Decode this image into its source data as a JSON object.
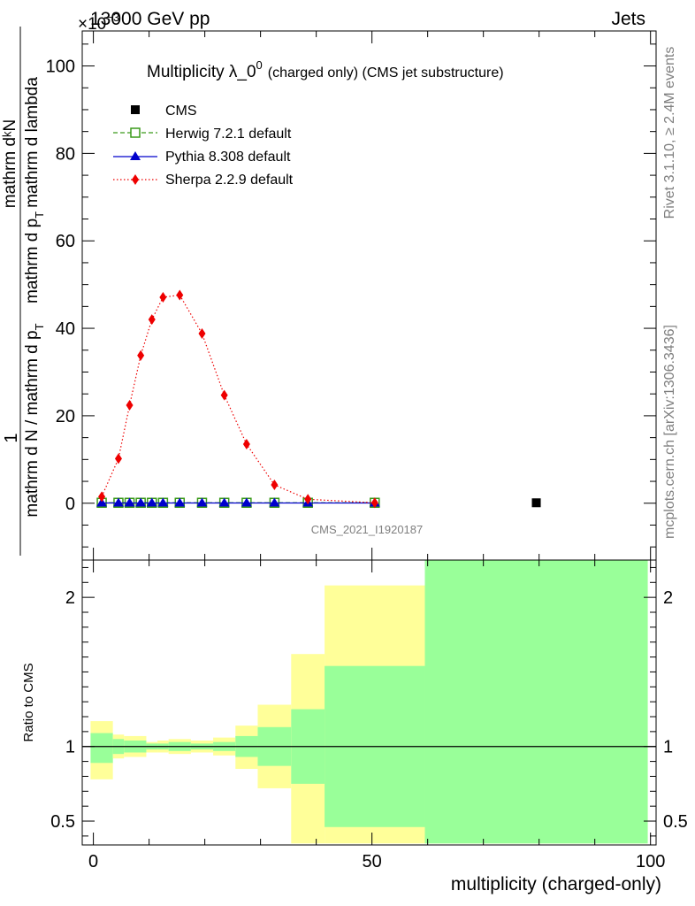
{
  "header": {
    "energy_label": "13000 GeV pp",
    "process_label": "Jets",
    "exponent_prefix": "×10",
    "exponent_value": "−3"
  },
  "side_labels": {
    "rivet": "Rivet 3.1.10, ≥ 2.4M events",
    "mcplots": "mcplots.cern.ch [arXiv:1306.3436]"
  },
  "chart_data": [
    {
      "type": "line",
      "title": "Multiplicity λ_0",
      "title_sup": "0",
      "title_suffix": "(charged only) (CMS jet substructure)",
      "ylabel_numerator": "1",
      "ylabel_numerator2": "mathrm dᵏN",
      "ylabel_denominator": "mathrm d N / mathrm d p",
      "ylabel_denominator_sub": "T",
      "ylabel_numerator_tail": "mathrm d p",
      "ylabel_numerator_tail_sub": "T",
      "ylabel_numerator_tail2": "mathrm d lambda",
      "xlim": [
        -2,
        101
      ],
      "ylim": [
        -13,
        108
      ],
      "yticks": [
        0,
        20,
        40,
        60,
        80,
        100
      ],
      "watermark": "CMS_2021_I1920187",
      "legend_position": "top-left",
      "series": [
        {
          "name": "CMS",
          "color": "#000000",
          "marker": "square",
          "line": "none",
          "x": [
            79.5
          ],
          "y": [
            0.1
          ]
        },
        {
          "name": "Herwig 7.2.1 default",
          "color": "#3a9a1a",
          "marker": "open-square",
          "line": "dashed",
          "x": [
            1.5,
            4.5,
            6.5,
            8.5,
            10.5,
            12.5,
            15.5,
            19.5,
            23.5,
            27.5,
            32.5,
            38.5,
            50.5
          ],
          "y": [
            0.1,
            0.1,
            0.1,
            0.1,
            0.1,
            0.1,
            0.1,
            0.1,
            0.1,
            0.1,
            0.1,
            0.1,
            0.1
          ]
        },
        {
          "name": "Pythia 8.308 default",
          "color": "#0000cc",
          "marker": "triangle",
          "line": "solid",
          "x": [
            1.5,
            4.5,
            6.5,
            8.5,
            10.5,
            12.5,
            15.5,
            19.5,
            23.5,
            27.5,
            32.5,
            38.5,
            50.5
          ],
          "y": [
            0.05,
            0.05,
            0.05,
            0.05,
            0.05,
            0.05,
            0.05,
            0.05,
            0.05,
            0.05,
            0.05,
            0.05,
            0.05
          ]
        },
        {
          "name": "Sherpa 2.2.9 default",
          "color": "#ee0000",
          "marker": "diamond",
          "line": "dotted",
          "x": [
            1.5,
            4.5,
            6.5,
            8.5,
            10.5,
            12.5,
            15.5,
            19.5,
            23.5,
            27.5,
            32.5,
            38.5,
            50.5
          ],
          "y": [
            1.5,
            10.2,
            22.4,
            33.8,
            42.0,
            47.1,
            47.6,
            38.8,
            24.7,
            13.5,
            4.2,
            0.9,
            0.1
          ]
        }
      ]
    },
    {
      "type": "area",
      "ylabel": "Ratio to CMS",
      "xlabel": "multiplicity (charged-only)",
      "xlim": [
        -2,
        101
      ],
      "ylim": [
        0.34,
        2.25
      ],
      "xticks": [
        0,
        50,
        100
      ],
      "yticks": [
        0.5,
        1,
        2
      ],
      "reference_line": 1,
      "bands": [
        {
          "x0": -0.5,
          "x1": 3.5,
          "yellow": [
            0.78,
            1.17
          ],
          "green": [
            0.89,
            1.09
          ]
        },
        {
          "x0": 3.5,
          "x1": 5.5,
          "yellow": [
            0.92,
            1.08
          ],
          "green": [
            0.95,
            1.05
          ]
        },
        {
          "x0": 5.5,
          "x1": 9.5,
          "yellow": [
            0.93,
            1.07
          ],
          "green": [
            0.96,
            1.04
          ]
        },
        {
          "x0": 9.5,
          "x1": 11.5,
          "yellow": [
            0.96,
            1.03
          ],
          "green": [
            0.98,
            1.02
          ]
        },
        {
          "x0": 11.5,
          "x1": 13.5,
          "yellow": [
            0.96,
            1.04
          ],
          "green": [
            0.98,
            1.02
          ]
        },
        {
          "x0": 13.5,
          "x1": 17.5,
          "yellow": [
            0.95,
            1.05
          ],
          "green": [
            0.97,
            1.03
          ]
        },
        {
          "x0": 17.5,
          "x1": 21.5,
          "yellow": [
            0.96,
            1.04
          ],
          "green": [
            0.98,
            1.02
          ]
        },
        {
          "x0": 21.5,
          "x1": 25.5,
          "yellow": [
            0.94,
            1.06
          ],
          "green": [
            0.97,
            1.03
          ]
        },
        {
          "x0": 25.5,
          "x1": 29.5,
          "yellow": [
            0.85,
            1.14
          ],
          "green": [
            0.93,
            1.07
          ]
        },
        {
          "x0": 29.5,
          "x1": 35.5,
          "yellow": [
            0.72,
            1.28
          ],
          "green": [
            0.87,
            1.13
          ]
        },
        {
          "x0": 35.5,
          "x1": 41.5,
          "yellow": [
            0.35,
            1.62
          ],
          "green": [
            0.75,
            1.25
          ]
        },
        {
          "x0": 41.5,
          "x1": 59.5,
          "yellow": [
            0.35,
            2.08
          ],
          "green": [
            0.46,
            1.54
          ]
        },
        {
          "x0": 59.5,
          "x1": 99.5,
          "yellow": [
            0.35,
            2.25
          ],
          "green": [
            0.35,
            2.25
          ]
        }
      ]
    }
  ]
}
